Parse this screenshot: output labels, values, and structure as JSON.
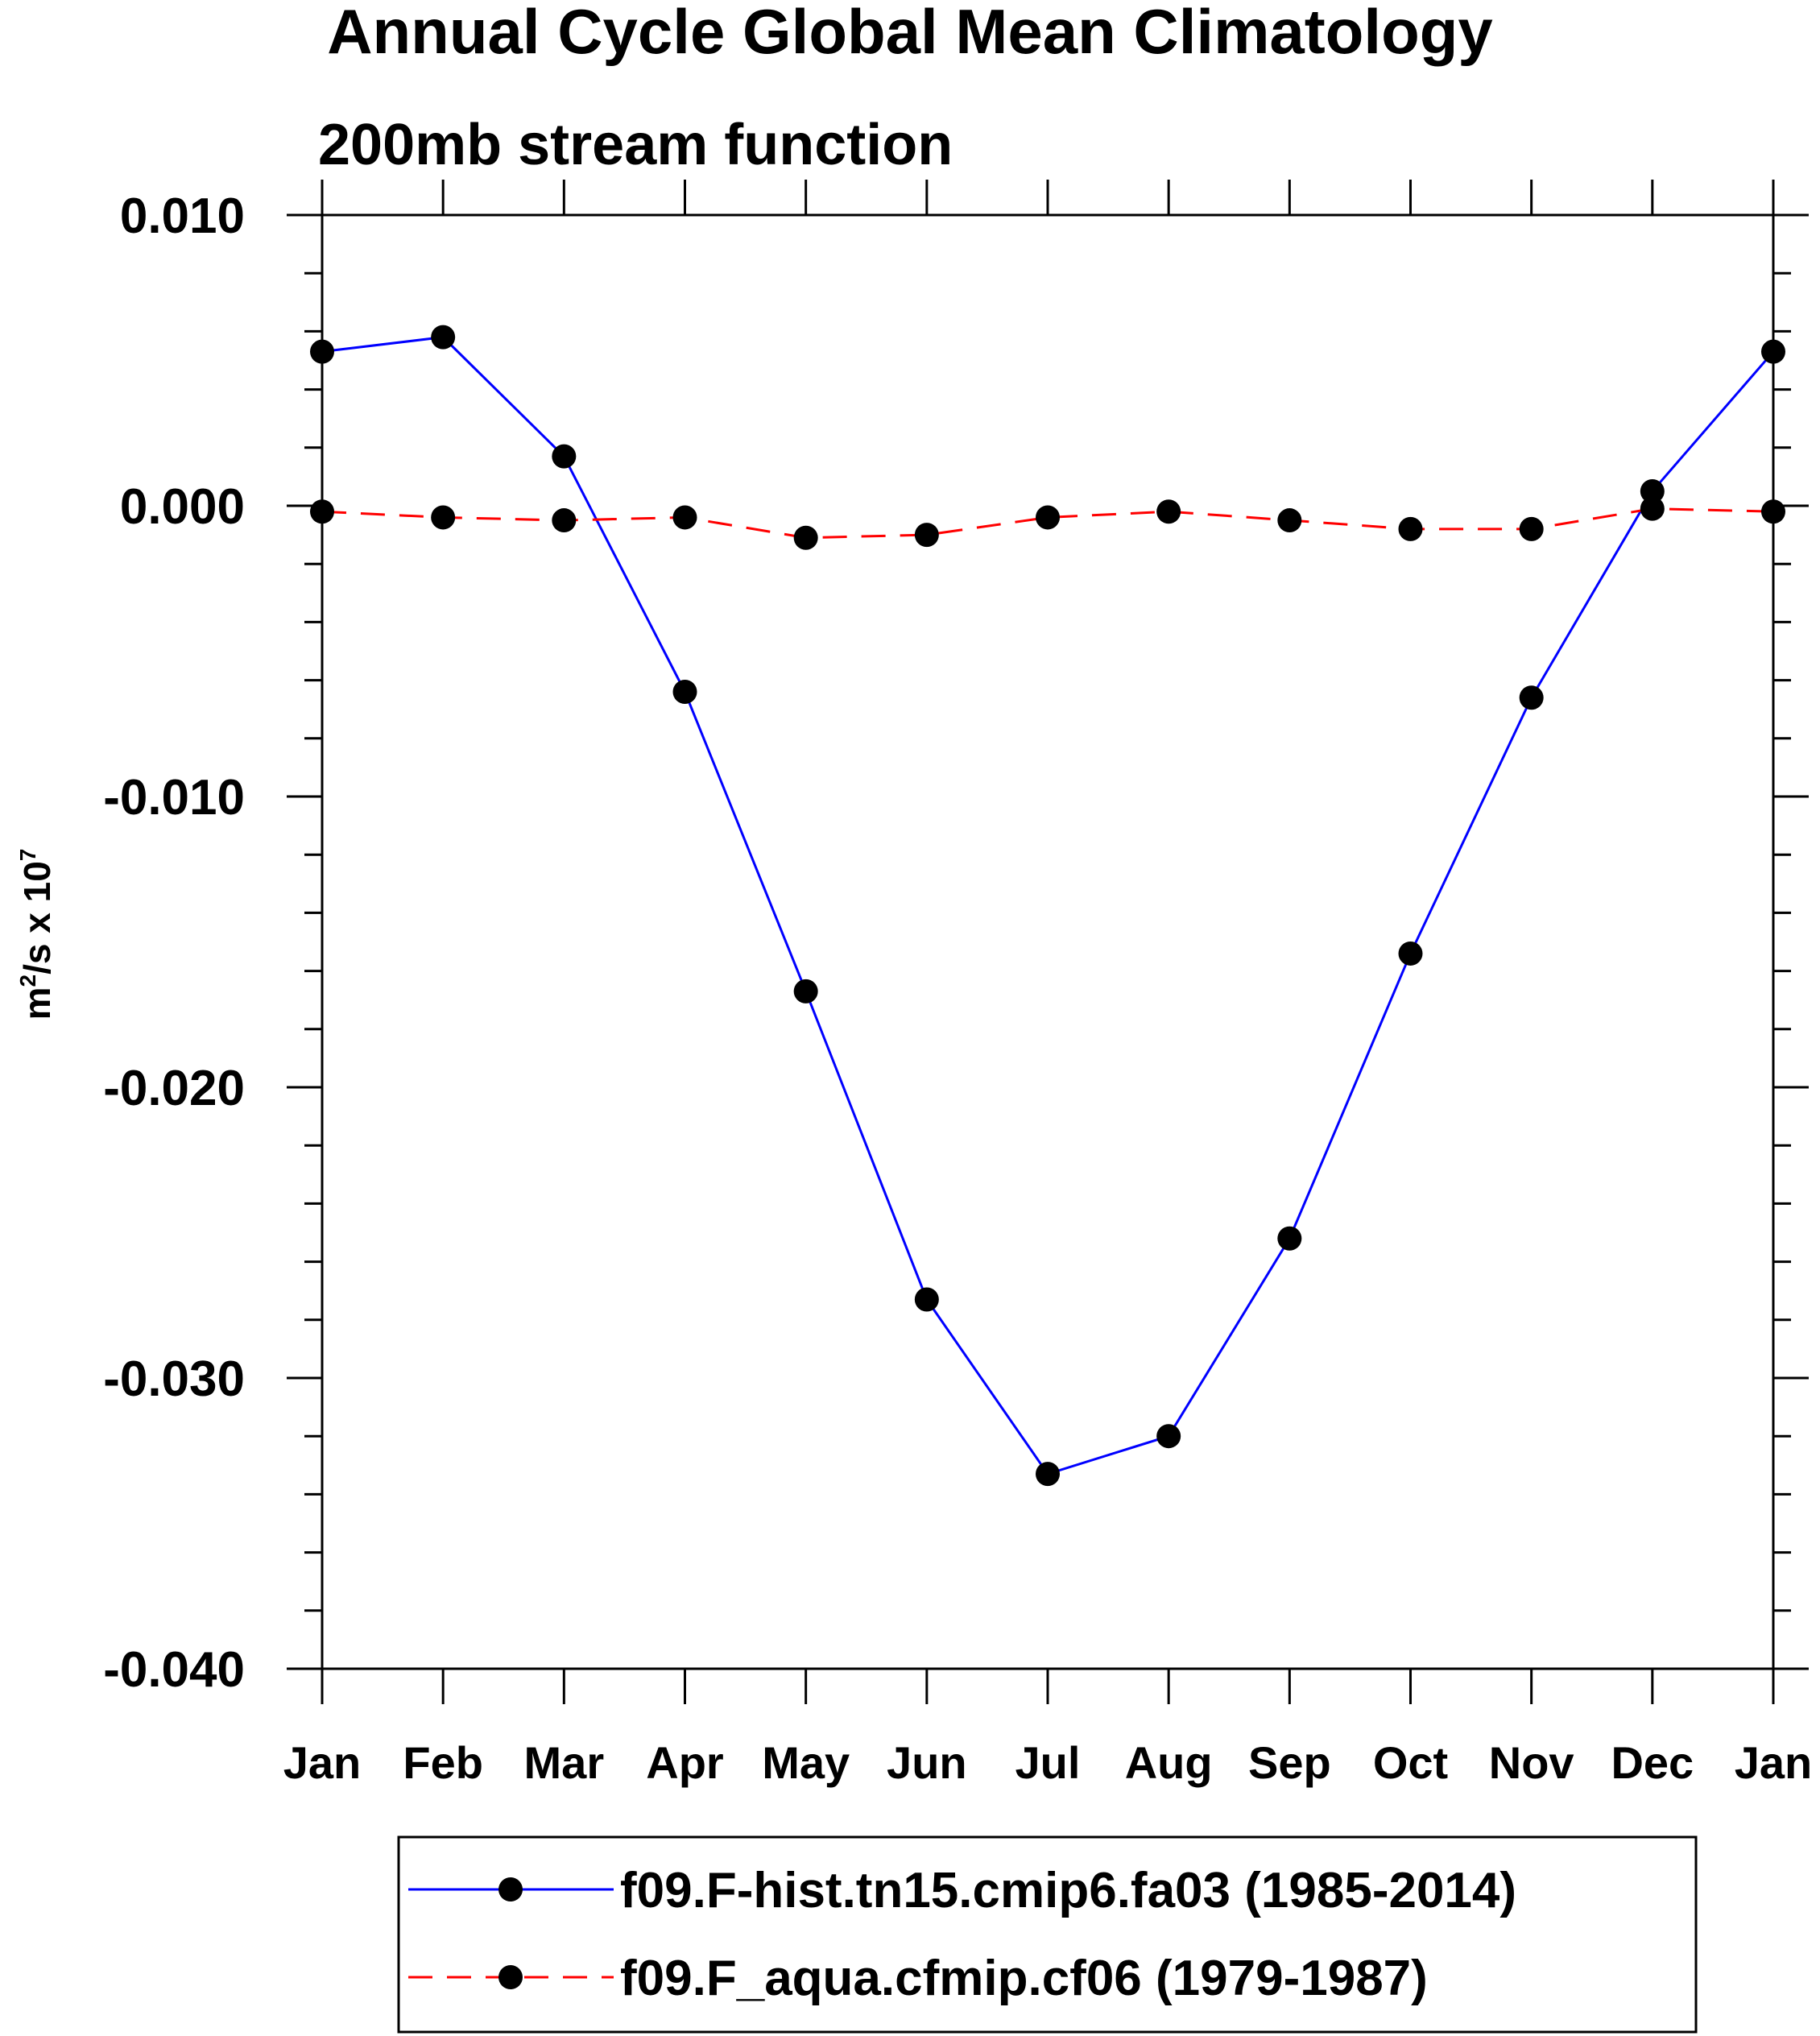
{
  "chart_data": {
    "type": "line",
    "title": "Annual Cycle Global Mean Climatology",
    "subtitle": "200mb stream function",
    "ylabel": {
      "base": "m",
      "sup1": "2",
      "mid": "/s x 10",
      "sup2": "7"
    },
    "xlabel": "",
    "categories": [
      "Jan",
      "Feb",
      "Mar",
      "Apr",
      "May",
      "Jun",
      "Jul",
      "Aug",
      "Sep",
      "Oct",
      "Nov",
      "Dec",
      "Jan"
    ],
    "ylim": [
      -0.04,
      0.01
    ],
    "yticks_major": [
      0.01,
      0.0,
      -0.01,
      -0.02,
      -0.03,
      -0.04
    ],
    "ytick_labels": [
      "0.010",
      "0.000",
      "-0.010",
      "-0.020",
      "-0.030",
      "-0.040"
    ],
    "yminor_step": 0.002,
    "grid": false,
    "legend_position": "bottom",
    "series": [
      {
        "name": "f09.F-hist.tn15.cmip6.fa03 (1985-2014)",
        "color": "#0000ff",
        "dash": "solid",
        "values": [
          0.0053,
          0.0058,
          0.0017,
          -0.0064,
          -0.0167,
          -0.0273,
          -0.0333,
          -0.032,
          -0.0252,
          -0.0154,
          -0.0066,
          0.0005,
          0.0053
        ]
      },
      {
        "name": "f09.F_aqua.cfmip.cf06 (1979-1987)",
        "color": "#ff0000",
        "dash": "dashed",
        "values": [
          -0.0002,
          -0.0004,
          -0.0005,
          -0.0004,
          -0.0011,
          -0.001,
          -0.0004,
          -0.0002,
          -0.0005,
          -0.0008,
          -0.0008,
          -0.0001,
          -0.0002
        ]
      }
    ]
  }
}
